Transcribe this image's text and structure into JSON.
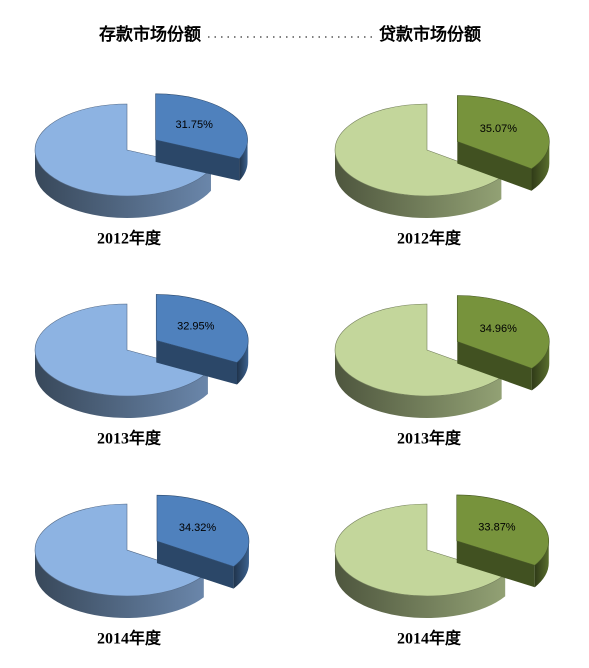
{
  "header": {
    "left": "存款市场份额",
    "right": "贷款市场份额"
  },
  "chart_data": [
    {
      "type": "pie",
      "title": "2012年度",
      "values": [
        31.75,
        68.25
      ],
      "value_labels": [
        "31.75%",
        null
      ],
      "colors": [
        "#4f81bd",
        "#8db3e2"
      ]
    },
    {
      "type": "pie",
      "title": "2012年度",
      "values": [
        35.07,
        64.93
      ],
      "value_labels": [
        "35.07%",
        null
      ],
      "colors": [
        "#77933c",
        "#c3d69b"
      ]
    },
    {
      "type": "pie",
      "title": "2013年度",
      "values": [
        32.95,
        67.05
      ],
      "value_labels": [
        "32.95%",
        null
      ],
      "colors": [
        "#4f81bd",
        "#8db3e2"
      ]
    },
    {
      "type": "pie",
      "title": "2013年度",
      "values": [
        34.96,
        65.04
      ],
      "value_labels": [
        "34.96%",
        null
      ],
      "colors": [
        "#77933c",
        "#c3d69b"
      ]
    },
    {
      "type": "pie",
      "title": "2014年度",
      "values": [
        34.32,
        65.68
      ],
      "value_labels": [
        "34.32%",
        null
      ],
      "colors": [
        "#4f81bd",
        "#8db3e2"
      ]
    },
    {
      "type": "pie",
      "title": "2014年度",
      "values": [
        33.87,
        66.13
      ],
      "value_labels": [
        "33.87%",
        null
      ],
      "colors": [
        "#77933c",
        "#c3d69b"
      ]
    }
  ]
}
